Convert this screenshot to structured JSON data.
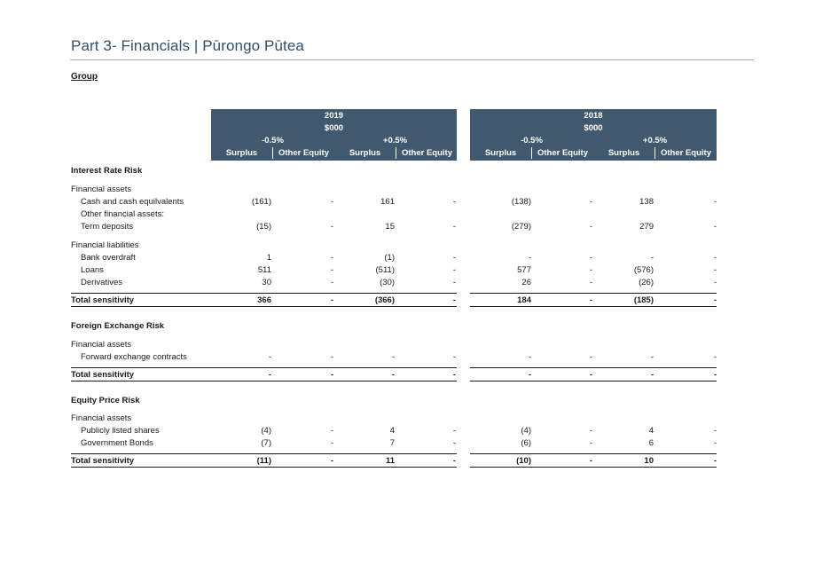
{
  "page": {
    "title": "Part 3- Financials | Pūrongo Pūtea",
    "group_label": "Group"
  },
  "header": {
    "y2019": {
      "year": "2019",
      "unit": "$000",
      "minus": "-0.5%",
      "plus": "+0.5%"
    },
    "y2018": {
      "year": "2018",
      "unit": "$000",
      "minus": "-0.5%",
      "plus": "+0.5%"
    },
    "columns": [
      "Surplus",
      "Other Equity",
      "Surplus",
      "Other Equity",
      "Surplus",
      "Other Equity",
      "Surplus",
      "Other Equity"
    ]
  },
  "rows": [
    {
      "label": "Interest Rate Risk",
      "style": "section",
      "values": []
    },
    {
      "label": "Financial assets",
      "style": "plain",
      "values": []
    },
    {
      "label": "Cash and cash equilvalents",
      "style": "indent",
      "values": [
        "(161)",
        "-",
        "161",
        "-",
        "(138)",
        "-",
        "138",
        "-"
      ]
    },
    {
      "label": "Other financial assets:",
      "style": "indent",
      "values": []
    },
    {
      "label": "Term deposits",
      "style": "indent",
      "values": [
        "(15)",
        "-",
        "15",
        "-",
        "(279)",
        "-",
        "279",
        "-"
      ]
    },
    {
      "label": "Financial liabilities",
      "style": "plain",
      "values": []
    },
    {
      "label": "Bank overdraft",
      "style": "indent",
      "values": [
        "1",
        "-",
        "(1)",
        "-",
        "-",
        "-",
        "-",
        "-"
      ]
    },
    {
      "label": "Loans",
      "style": "indent",
      "values": [
        "511",
        "-",
        "(511)",
        "-",
        "577",
        "-",
        "(576)",
        "-"
      ]
    },
    {
      "label": "Derivatives",
      "style": "indent",
      "values": [
        "30",
        "-",
        "(30)",
        "-",
        "26",
        "-",
        "(26)",
        "-"
      ]
    },
    {
      "label": "Total sensitivity",
      "style": "total",
      "values": [
        "366",
        "-",
        "(366)",
        "-",
        "184",
        "-",
        "(185)",
        "-"
      ]
    },
    {
      "label": "Foreign Exchange Risk",
      "style": "section",
      "values": []
    },
    {
      "label": "Financial assets",
      "style": "plain",
      "values": []
    },
    {
      "label": "Forward exchange contracts",
      "style": "indent",
      "values": [
        "-",
        "-",
        "-",
        "-",
        "-",
        "-",
        "-",
        "-"
      ]
    },
    {
      "label": "Total sensitivity",
      "style": "total",
      "values": [
        "-",
        "-",
        "-",
        "-",
        "-",
        "-",
        "-",
        "-"
      ]
    },
    {
      "label": "Equity Price Risk",
      "style": "section",
      "values": []
    },
    {
      "label": "Financial assets",
      "style": "plain",
      "values": []
    },
    {
      "label": "Publicly listed shares",
      "style": "indent",
      "values": [
        "(4)",
        "-",
        "4",
        "-",
        "(4)",
        "-",
        "4",
        "-"
      ]
    },
    {
      "label": "Government Bonds",
      "style": "indent",
      "values": [
        "(7)",
        "-",
        "7",
        "-",
        "(6)",
        "-",
        "6",
        "-"
      ]
    },
    {
      "label": "Total sensitivity",
      "style": "total",
      "values": [
        "(11)",
        "-",
        "11",
        "-",
        "(10)",
        "-",
        "10",
        "-"
      ]
    }
  ]
}
